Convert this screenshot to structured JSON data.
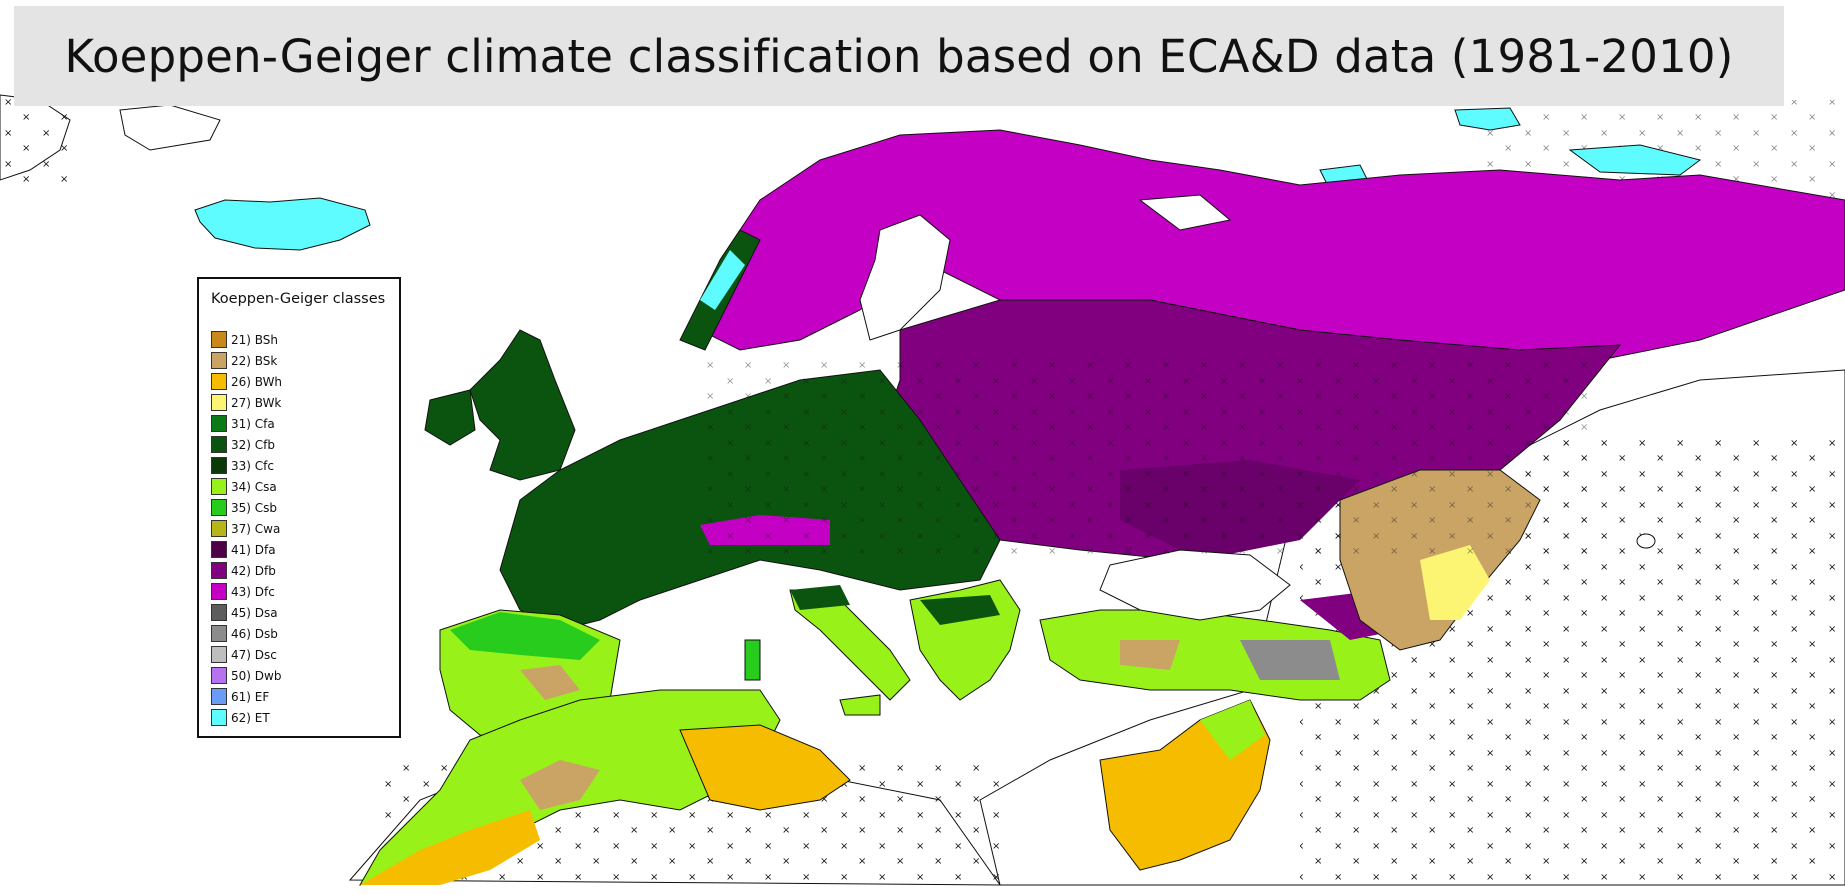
{
  "title": "Koeppen-Geiger climate classification based on ECA&D data (1981-2010)",
  "legend": {
    "title": "Koeppen-Geiger classes",
    "items": [
      {
        "label": "21) BSh",
        "color": "#c8891a"
      },
      {
        "label": "22) BSk",
        "color": "#c9a465"
      },
      {
        "label": "26) BWh",
        "color": "#f6bc00"
      },
      {
        "label": "27) BWk",
        "color": "#fbf573"
      },
      {
        "label": "31) Cfa",
        "color": "#0b7a16"
      },
      {
        "label": "32) Cfb",
        "color": "#0b5410"
      },
      {
        "label": "33) Cfc",
        "color": "#0a3a0a"
      },
      {
        "label": "34) Csa",
        "color": "#98f21a"
      },
      {
        "label": "35) Csb",
        "color": "#28cc1c"
      },
      {
        "label": "37) Cwa",
        "color": "#b7b51a"
      },
      {
        "label": "41) Dfa",
        "color": "#4e0048"
      },
      {
        "label": "42) Dfb",
        "color": "#800080"
      },
      {
        "label": "43) Dfc",
        "color": "#c400c4"
      },
      {
        "label": "45) Dsa",
        "color": "#5c5c5c"
      },
      {
        "label": "46) Dsb",
        "color": "#8c8c8c"
      },
      {
        "label": "47) Dsc",
        "color": "#bebebe"
      },
      {
        "label": "50) Dwb",
        "color": "#b673f0"
      },
      {
        "label": "61) EF",
        "color": "#6a9cf5"
      },
      {
        "label": "62) ET",
        "color": "#5ffcff"
      }
    ]
  }
}
